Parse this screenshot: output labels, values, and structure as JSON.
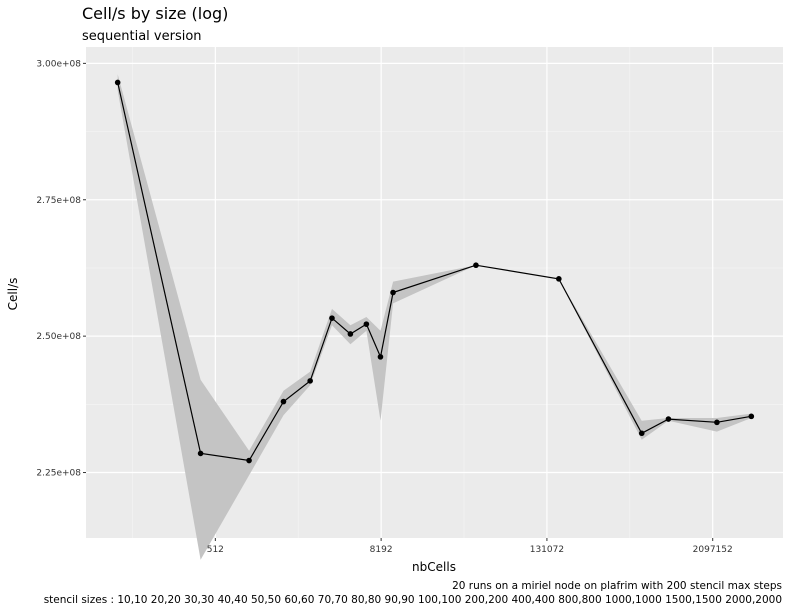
{
  "chart_data": {
    "type": "line",
    "title": "Cell/s by size (log)",
    "subtitle": "sequential version",
    "xlabel": "nbCells",
    "ylabel": "Cell/s",
    "x_scale": "log",
    "grid": true,
    "x_ticks": [
      512,
      8192,
      131072,
      2097152
    ],
    "x_tick_labels": [
      "512",
      "8192",
      "131072",
      "2097152"
    ],
    "y_ticks": [
      225000000,
      250000000,
      275000000,
      300000000
    ],
    "y_tick_labels": [
      "2.25e+08",
      "2.50e+08",
      "2.75e+08",
      "3.00e+08"
    ],
    "ylim": [
      213000000,
      303000000
    ],
    "x": [
      100,
      400,
      900,
      1600,
      2500,
      3600,
      4900,
      6400,
      8100,
      10000,
      40000,
      160000,
      640000,
      1000000,
      2250000,
      4000000
    ],
    "series": [
      {
        "values": [
          296500000,
          228500000,
          227200000,
          238000000,
          241800000,
          253300000,
          250400000,
          252200000,
          246200000,
          258000000,
          263000000,
          260500000,
          232200000,
          234800000,
          234200000,
          235300000
        ],
        "lower": [
          295000000,
          209000000,
          224500000,
          235500000,
          241000000,
          252000000,
          248500000,
          251000000,
          234500000,
          256000000,
          263000000,
          260500000,
          231000000,
          234500000,
          232500000,
          235000000
        ],
        "upper": [
          298000000,
          242000000,
          229000000,
          240000000,
          243500000,
          255000000,
          252000000,
          253500000,
          251000000,
          260000000,
          263000000,
          260500000,
          234500000,
          235000000,
          235000000,
          235800000
        ]
      }
    ],
    "caption": [
      "20 runs on a miriel node on plafrim with 200 stencil max steps",
      "stencil sizes : 10,10 20,20 30,30 40,40 50,50 60,60 70,70 80,80 90,90 100,100 200,200 400,400 800,800 1000,1000 1500,1500 2000,2000"
    ]
  }
}
